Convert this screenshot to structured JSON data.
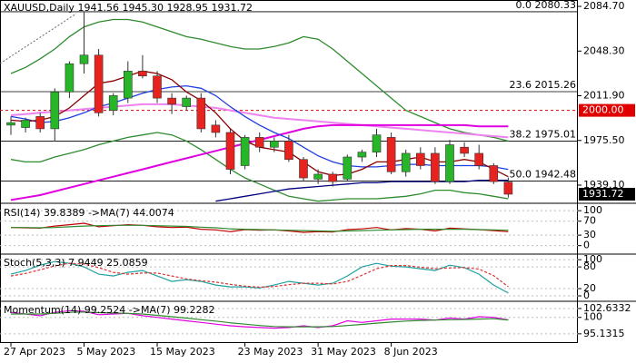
{
  "chart_data": [
    {
      "type": "candlestick",
      "title": "XAUUSD,Daily",
      "last_labels": {
        "open": "1941.56",
        "high": "1945.30",
        "low": "1928.95",
        "close": "1931.72"
      },
      "categories": [
        "27 Apr 2023",
        null,
        null,
        null,
        null,
        "5 May 2023",
        null,
        null,
        null,
        null,
        "15 May 2023",
        null,
        null,
        null,
        null,
        null,
        "23 May 2023",
        null,
        null,
        null,
        null,
        "31 May 2023",
        null,
        null,
        null,
        null,
        "8 Jun 2023",
        null,
        null,
        null,
        null,
        null,
        null,
        null,
        null
      ],
      "open": [
        1988,
        1986,
        1995,
        1985,
        2015,
        2038,
        2045,
        2000,
        2010,
        2032,
        2028,
        2010,
        2003,
        2010,
        1988,
        1982,
        1955,
        1978,
        1970,
        1975,
        1960,
        1944,
        1948,
        1944,
        1962,
        1966,
        1978,
        1950,
        1965,
        1965,
        1942,
        1970,
        1965,
        1955,
        1941.56
      ],
      "high": [
        1995,
        1994,
        1998,
        2018,
        2040,
        2080.33,
        2050,
        2014,
        2040,
        2045,
        2032,
        2014,
        2012,
        2014,
        1992,
        1985,
        1980,
        1982,
        1978,
        1980,
        1962,
        1952,
        1950,
        1964,
        1968,
        1985,
        1982,
        1968,
        1970,
        1970,
        1976,
        1974,
        1972,
        1957,
        1945.3
      ],
      "low": [
        1980,
        1982,
        1982,
        1975,
        2010,
        2030,
        1995,
        1996,
        2006,
        2026,
        2006,
        1997,
        2000,
        1982,
        1978,
        1948,
        1952,
        1966,
        1966,
        1958,
        1942,
        1940,
        1938,
        1942,
        1958,
        1962,
        1948,
        1946,
        1952,
        1940,
        1940,
        1962,
        1952,
        1940,
        1928.95
      ],
      "close": [
        1990,
        1992,
        1985,
        2015,
        2038,
        2045,
        1998,
        2012,
        2032,
        2028,
        2010,
        2005,
        2010,
        1985,
        1982,
        1952,
        1978,
        1970,
        1975,
        1960,
        1945,
        1948,
        1942,
        1962,
        1966,
        1980,
        1950,
        1965,
        1955,
        1942,
        1972,
        1965,
        1955,
        1942,
        1931.72
      ],
      "up_color": "#27b627",
      "down_color": "#e8231f",
      "ylim": [
        1925.8,
        2089.9
      ],
      "yticks": [
        {
          "value": 2084.7,
          "label": "2084.70"
        },
        {
          "value": 2048.3,
          "label": "2048.30"
        },
        {
          "value": 2011.9,
          "label": "2011.90"
        },
        {
          "value": 1975.5,
          "label": "1975.50"
        },
        {
          "value": 1939.1,
          "label": "1939.10"
        }
      ],
      "fib_levels": [
        {
          "ratio": {
            "value": 0,
            "label": "0.0"
          },
          "price": 2080.33
        },
        {
          "ratio": 23.6,
          "price": 2015.26
        },
        {
          "ratio": 38.2,
          "price": 1975.01
        },
        {
          "ratio": {
            "value": 50,
            "label": "50.0"
          },
          "price": 1942.48
        }
      ],
      "reference": {
        "value": 2000,
        "label": "2000.00",
        "color": "#e00000"
      },
      "lines": [
        {
          "color": "#2e8b2e",
          "values": [
            2030,
            2035,
            2042,
            2050,
            2060,
            2068,
            2072,
            2074,
            2074,
            2072,
            2068,
            2064,
            2060,
            2058,
            2055,
            2052,
            2050,
            2050,
            2052,
            2055,
            2060,
            2058,
            2050,
            2040,
            2030,
            2020,
            2010,
            2000,
            1995,
            1990,
            1985,
            1982,
            1980,
            1978,
            1975
          ]
        },
        {
          "color": "#2e8b2e",
          "values": [
            1960,
            1958,
            1958,
            1962,
            1965,
            1968,
            1972,
            1975,
            1978,
            1980,
            1982,
            1980,
            1975,
            1968,
            1960,
            1952,
            1945,
            1940,
            1935,
            1930,
            1928,
            1926,
            1927,
            1928,
            1928,
            1928,
            1929,
            1930,
            1932,
            1935,
            1935,
            1933,
            1932,
            1930,
            1928
          ]
        },
        {
          "color": "#ee82ee",
          "values": [
            1996,
            1997,
            1998,
            1999,
            2000,
            2001,
            2002,
            2003,
            2004,
            2005,
            2005,
            2005,
            2004,
            2003,
            2002,
            2000,
            1998,
            1996,
            1994,
            1993,
            1992,
            1991,
            1990,
            1989,
            1988,
            1987,
            1986,
            1985,
            1984,
            1983,
            1982,
            1981,
            1980,
            1979,
            1978
          ]
        },
        {
          "color": "#e000e0",
          "values": [
            1927,
            1929,
            1931,
            1934,
            1937,
            1940,
            1943,
            1946,
            1949,
            1952,
            1955,
            1958,
            1961,
            1964,
            1967,
            1970,
            1973,
            1976,
            1979,
            1982,
            1985,
            1987,
            1988,
            1988,
            1988,
            1988,
            1988,
            1988,
            1988,
            1988,
            1988,
            1988,
            1987,
            1987,
            1987
          ]
        },
        {
          "color": "#000080",
          "values": [
            null,
            null,
            null,
            null,
            null,
            null,
            null,
            null,
            null,
            null,
            null,
            null,
            null,
            null,
            1926,
            1928,
            1930,
            1932,
            1934,
            1936,
            1937,
            1938,
            1939,
            1940,
            1941,
            1941,
            1942,
            1942,
            1942,
            1942,
            1942,
            1942,
            1943,
            1943,
            1943
          ]
        },
        {
          "color": "#1f3fe0",
          "values": [
            1995,
            1993,
            1990,
            1991,
            1994,
            1998,
            2003,
            2006,
            2010,
            2014,
            2017,
            2019,
            2020,
            2018,
            2012,
            2003,
            1995,
            1988,
            1982,
            1977,
            1970,
            1963,
            1958,
            1955,
            1954,
            1954,
            1955,
            1956,
            1956,
            1955,
            1955,
            1955,
            1955,
            1954,
            1952
          ]
        },
        {
          "color": "#8b0000",
          "values": [
            1992,
            1991,
            1992,
            1995,
            2002,
            2012,
            2022,
            2024,
            2028,
            2032,
            2030,
            2025,
            2015,
            2008,
            1998,
            1985,
            1975,
            1970,
            1968,
            1966,
            1958,
            1950,
            1947,
            1948,
            1952,
            1958,
            1958,
            1960,
            1962,
            1958,
            1958,
            1960,
            1958,
            1952,
            1946
          ]
        }
      ]
    },
    {
      "type": "line",
      "ylim": [
        -19,
        116
      ],
      "yticks": [
        100,
        70,
        30,
        0
      ],
      "series": [
        {
          "name": "RSI(14)",
          "color": "#c00000",
          "values": [
            52,
            51,
            50,
            56,
            60,
            64,
            54,
            57,
            60,
            58,
            54,
            52,
            53,
            47,
            45,
            40,
            46,
            44,
            45,
            42,
            38,
            40,
            39,
            46,
            48,
            52,
            45,
            49,
            47,
            42,
            50,
            48,
            46,
            43,
            39.8389
          ]
        },
        {
          "name": "->MA(7)",
          "color": "#2e8b2e",
          "values": [
            52,
            52,
            51,
            52,
            54,
            56,
            57,
            58,
            58,
            58,
            57,
            56,
            55,
            53,
            51,
            48,
            47,
            46,
            45,
            44,
            43,
            42,
            41,
            42,
            43,
            44,
            45,
            46,
            47,
            47,
            47,
            47,
            46,
            45,
            44.0074
          ]
        }
      ]
    },
    {
      "type": "line",
      "ylim": [
        -10,
        113
      ],
      "yticks": [
        100,
        80,
        20,
        0
      ],
      "series": [
        {
          "name": "Stoch(5,3,3)",
          "color": "#20a0a0",
          "values": [
            60,
            70,
            85,
            95,
            90,
            80,
            60,
            55,
            65,
            70,
            55,
            40,
            45,
            40,
            30,
            25,
            25,
            22,
            30,
            40,
            35,
            30,
            35,
            55,
            80,
            90,
            82,
            80,
            75,
            70,
            85,
            78,
            60,
            30,
            7.9449
          ]
        },
        {
          "color": "#e03030",
          "dashed": true,
          "values": [
            55,
            62,
            72,
            83,
            90,
            88,
            78,
            65,
            60,
            63,
            63,
            55,
            47,
            42,
            38,
            32,
            27,
            24,
            26,
            31,
            35,
            35,
            33,
            40,
            57,
            75,
            84,
            84,
            79,
            75,
            77,
            78,
            74,
            56,
            25.0859
          ]
        }
      ]
    },
    {
      "type": "line",
      "ylim": [
        92.4,
        104.5
      ],
      "yticks": [
        102.6332,
        100,
        95.1315
      ],
      "series": [
        {
          "name": "Momentum(14)",
          "color": "#e000e0",
          "values": [
            101.5,
            101,
            100.5,
            101.5,
            102,
            101.8,
            100.8,
            101,
            101.2,
            100.5,
            100,
            99.5,
            99,
            98.5,
            98,
            97.5,
            97.2,
            97,
            96.8,
            97,
            97.5,
            97,
            97.5,
            99,
            98.5,
            99,
            99.5,
            99.5,
            99.5,
            99.2,
            99.8,
            99.5,
            100.2,
            100,
            99.2524
          ]
        },
        {
          "name": "->MA(7)",
          "color": "#2e8b2e",
          "values": [
            101,
            101,
            101,
            101.2,
            101.5,
            101.6,
            101.4,
            101.3,
            101.2,
            101,
            100.6,
            100.2,
            99.8,
            99.3,
            98.9,
            98.4,
            98,
            97.6,
            97.3,
            97.2,
            97.2,
            97.2,
            97.3,
            97.6,
            97.9,
            98.3,
            98.6,
            98.9,
            99.1,
            99.2,
            99.3,
            99.4,
            99.5,
            99.6,
            99.2282
          ]
        }
      ]
    }
  ]
}
